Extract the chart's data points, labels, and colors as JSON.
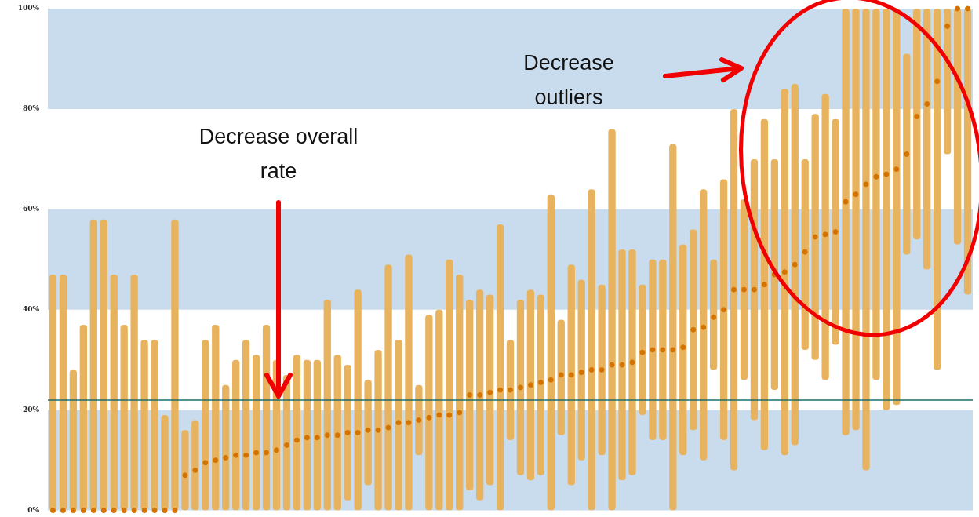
{
  "chart_data": {
    "type": "bar",
    "categories": [
      null,
      null,
      null,
      null,
      null,
      null,
      null,
      null,
      null,
      null,
      null,
      null,
      null,
      null,
      null,
      null,
      null,
      null,
      null,
      null,
      null,
      null,
      null,
      null,
      null,
      null,
      null,
      null,
      null,
      null,
      null,
      null,
      null,
      null,
      null,
      null,
      null,
      null,
      null,
      null,
      null,
      null,
      null,
      null,
      null,
      null,
      null,
      null,
      null,
      null,
      null,
      null,
      null,
      null,
      null,
      null,
      null,
      null,
      null,
      null,
      null,
      null,
      null,
      null,
      null,
      null,
      null,
      null,
      null,
      null,
      null,
      null,
      null,
      null,
      null,
      null,
      null,
      null,
      null,
      null,
      null,
      null,
      null,
      null,
      null,
      null,
      null,
      null,
      null,
      null,
      null
    ],
    "series": [
      {
        "color": "#e8b35e",
        "base": [
          0,
          0,
          0,
          0,
          0,
          0,
          0,
          0,
          0,
          0,
          0,
          0,
          0,
          0,
          0,
          0,
          0,
          0,
          0,
          0,
          0,
          0,
          0,
          0,
          0,
          0,
          0,
          0,
          0,
          2,
          0,
          5,
          0,
          0,
          0,
          0,
          11,
          0,
          0,
          0,
          0,
          4,
          2,
          5,
          0,
          14,
          7,
          6,
          7,
          0,
          15,
          5,
          10,
          0,
          11,
          0,
          6,
          7,
          19,
          14,
          14,
          0,
          11,
          16,
          10,
          28,
          14,
          8,
          26,
          18,
          12,
          24,
          11,
          13,
          32,
          30,
          26,
          33,
          15,
          16,
          8,
          26,
          20,
          21,
          51,
          54,
          48,
          28,
          71,
          53,
          43
        ],
        "values": [
          47,
          47,
          28,
          37,
          58,
          58,
          47,
          37,
          47,
          34,
          34,
          19,
          58,
          16,
          18,
          34,
          37,
          25,
          30,
          34,
          31,
          37,
          30,
          27,
          31,
          30,
          30,
          42,
          31,
          27,
          44,
          21,
          32,
          49,
          34,
          51,
          14,
          39,
          40,
          50,
          47,
          38,
          42,
          38,
          57,
          20,
          35,
          38,
          36,
          63,
          23,
          44,
          36,
          64,
          34,
          76,
          46,
          45,
          26,
          36,
          36,
          73,
          42,
          40,
          54,
          22,
          52,
          72,
          36,
          52,
          66,
          46,
          73,
          72,
          38,
          49,
          57,
          45,
          85,
          84,
          92,
          74,
          80,
          79,
          40,
          46,
          52,
          72,
          29,
          47,
          57
        ]
      },
      {
        "type": "scatter",
        "color": "#d47300",
        "marker": "circle",
        "values": [
          0,
          0,
          0,
          0,
          0,
          0,
          0,
          0,
          0,
          0,
          0,
          0,
          0,
          7,
          8,
          9.5,
          10,
          10.5,
          11,
          11,
          11.5,
          11.5,
          12,
          13,
          14,
          14.5,
          14.5,
          15,
          15,
          15.5,
          15.5,
          16,
          16,
          16.5,
          17.5,
          17.5,
          18,
          18.5,
          19,
          19,
          19.5,
          23,
          23,
          23.5,
          24,
          24,
          24.5,
          25,
          25.5,
          26,
          27,
          27,
          27.5,
          28,
          28,
          29,
          29,
          29.5,
          31.5,
          32,
          32,
          32,
          32.5,
          36,
          36.5,
          38.5,
          40,
          44,
          44,
          44,
          45,
          47,
          47.5,
          49,
          51.5,
          54.5,
          55,
          55.5,
          61.5,
          63,
          65,
          66.5,
          67,
          68,
          71,
          78.5,
          81,
          85.5,
          96.5,
          100,
          100
        ]
      }
    ],
    "ylim": [
      0,
      100
    ],
    "yticks": [
      {
        "value": 0,
        "label": "0%"
      },
      {
        "value": 20,
        "label": "20%"
      },
      {
        "value": 40,
        "label": "40%"
      },
      {
        "value": 60,
        "label": "60%"
      },
      {
        "value": 80,
        "label": "80%"
      },
      {
        "value": 100,
        "label": "100%"
      }
    ],
    "tick_labels": "y",
    "grid": false,
    "legend": false,
    "bands": [
      {
        "axis": "y",
        "from": 0,
        "to": 20,
        "color": "#c9dcee"
      },
      {
        "axis": "y",
        "from": 40,
        "to": 60,
        "color": "#c9dcee"
      },
      {
        "axis": "y",
        "from": 80,
        "to": 100,
        "color": "#c9dcee"
      }
    ],
    "ref_lines": [
      {
        "axis": "y",
        "value": 22,
        "color": "#1d6f6b"
      }
    ],
    "annotations": [
      "Decrease overall rate",
      "Decrease outliers"
    ]
  }
}
